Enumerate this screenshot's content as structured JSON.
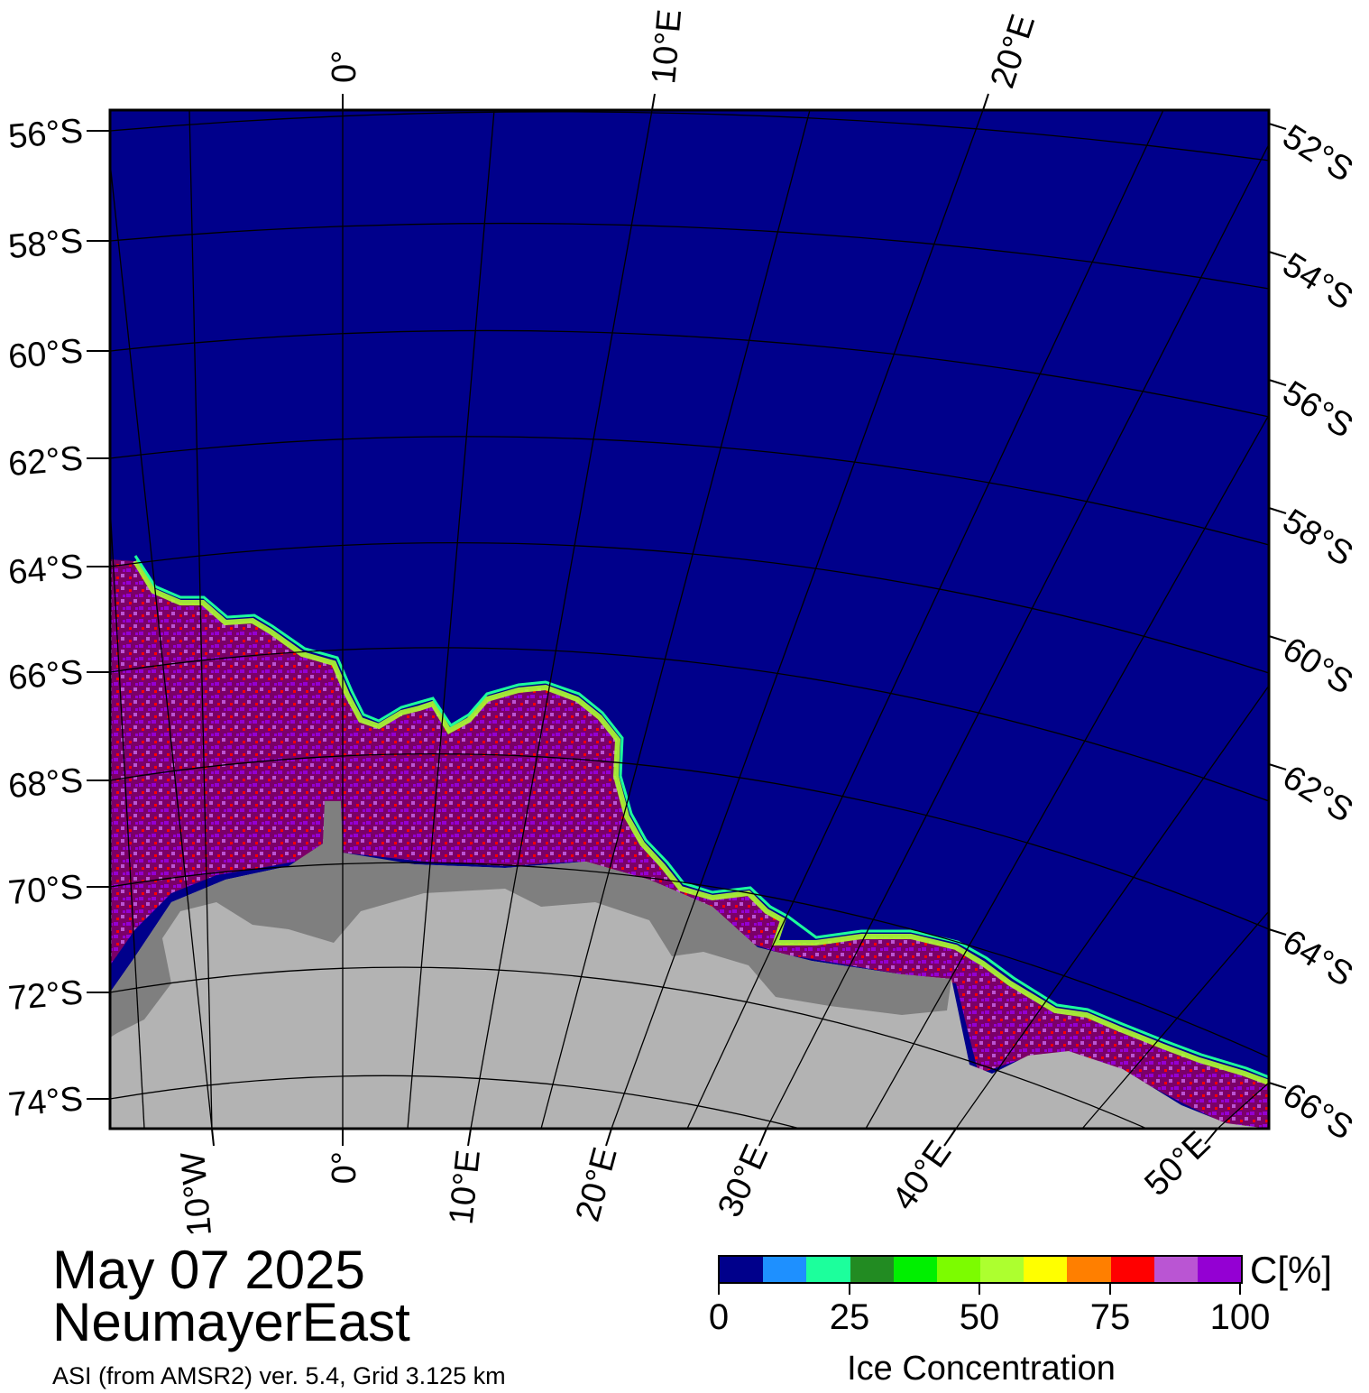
{
  "map": {
    "colors": {
      "ocean": "#00008b",
      "land": "#b3b3b3",
      "shelf_ice": "#7f7f7f",
      "ice_high": "#7b0068",
      "ice_purple": "#9400d3"
    },
    "lat_left": [
      "56°S",
      "58°S",
      "60°S",
      "62°S",
      "64°S",
      "66°S",
      "68°S",
      "70°S",
      "72°S",
      "74°S"
    ],
    "lat_right": [
      "52°S",
      "54°S",
      "56°S",
      "58°S",
      "60°S",
      "62°S",
      "64°S",
      "66°S"
    ],
    "lon_top": [
      "0°",
      "10°E",
      "20°E"
    ],
    "lon_bottom": [
      "10°W",
      "0°",
      "10°E",
      "20°E",
      "30°E",
      "40°E",
      "50°E"
    ]
  },
  "caption": {
    "date": "May 07 2025",
    "region": "NeumayerEast",
    "credit": "ASI (from AMSR2) ver. 5.4,  Grid 3.125 km"
  },
  "colorbar": {
    "colors": [
      "#00008b",
      "#1e90ff",
      "#1cff9c",
      "#228b22",
      "#00f000",
      "#7cfc00",
      "#adff2f",
      "#ffff00",
      "#ff7f00",
      "#ff0000",
      "#ba55d3",
      "#9400d3"
    ],
    "ticks": [
      "0",
      "25",
      "50",
      "75",
      "100"
    ],
    "unit": "C[%]",
    "title": "Ice Concentration"
  }
}
